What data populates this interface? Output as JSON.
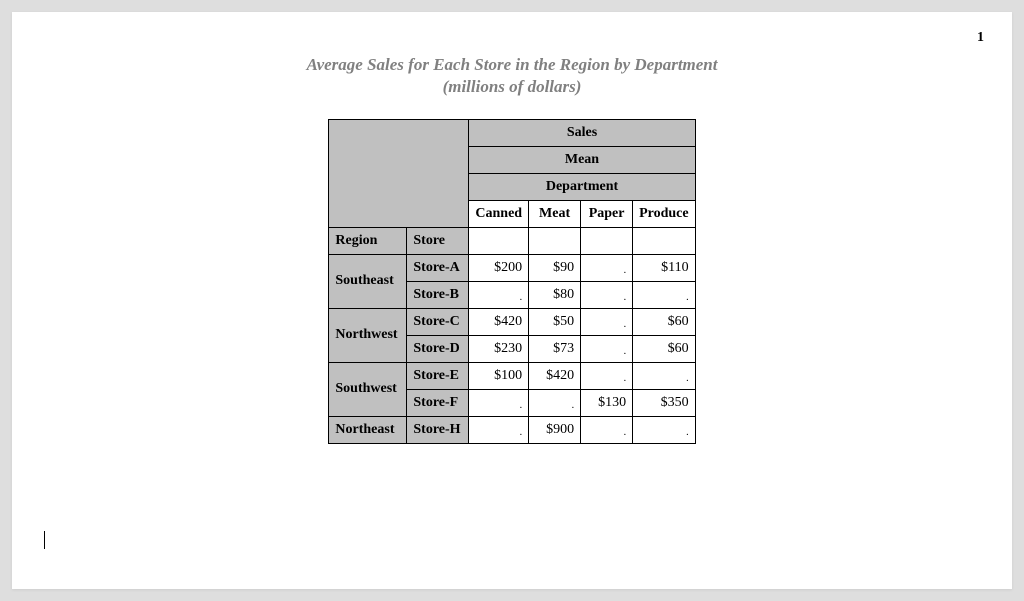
{
  "page": {
    "number": "1",
    "background_color": "#dedede",
    "paper_color": "#ffffff"
  },
  "title": {
    "line1": "Average Sales for Each Store in the Region by Department",
    "line2": "(millions of dollars)",
    "color": "#808080",
    "fontsize": 17,
    "font_style": "italic bold"
  },
  "table": {
    "type": "table",
    "header_bg": "#c0c0c0",
    "cell_bg": "#ffffff",
    "border_color": "#000000",
    "fontsize": 14,
    "missing_marker": ".",
    "spanner1": "Sales",
    "spanner2": "Mean",
    "spanner3": "Department",
    "row_labels": {
      "region": "Region",
      "store": "Store"
    },
    "departments": [
      "Canned",
      "Meat",
      "Paper",
      "Produce"
    ],
    "regions": [
      {
        "name": "Southeast",
        "stores": [
          {
            "name": "Store-A",
            "values": {
              "Canned": "$200",
              "Meat": "$90",
              "Paper": ".",
              "Produce": "$110"
            }
          },
          {
            "name": "Store-B",
            "values": {
              "Canned": ".",
              "Meat": "$80",
              "Paper": ".",
              "Produce": "."
            }
          }
        ]
      },
      {
        "name": "Northwest",
        "stores": [
          {
            "name": "Store-C",
            "values": {
              "Canned": "$420",
              "Meat": "$50",
              "Paper": ".",
              "Produce": "$60"
            }
          },
          {
            "name": "Store-D",
            "values": {
              "Canned": "$230",
              "Meat": "$73",
              "Paper": ".",
              "Produce": "$60"
            }
          }
        ]
      },
      {
        "name": "Southwest",
        "stores": [
          {
            "name": "Store-E",
            "values": {
              "Canned": "$100",
              "Meat": "$420",
              "Paper": ".",
              "Produce": "."
            }
          },
          {
            "name": "Store-F",
            "values": {
              "Canned": ".",
              "Meat": ".",
              "Paper": "$130",
              "Produce": "$350"
            }
          }
        ]
      },
      {
        "name": "Northeast",
        "stores": [
          {
            "name": "Store-H",
            "values": {
              "Canned": ".",
              "Meat": "$900",
              "Paper": ".",
              "Produce": "."
            }
          }
        ]
      }
    ]
  }
}
